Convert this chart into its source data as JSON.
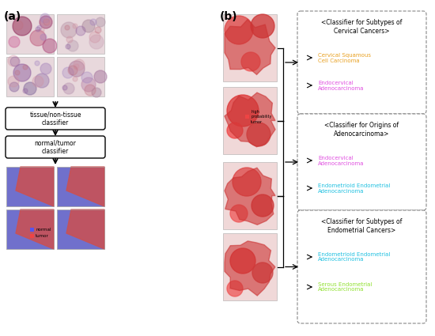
{
  "fig_width": 5.5,
  "fig_height": 4.25,
  "dpi": 100,
  "bg_color": "#ffffff",
  "panel_a_label": "(a)",
  "panel_b_label": "(b)",
  "classifier_box1_title": "<Classifier for Subtypes of\nCervical Cancers>",
  "classifier_box2_title": "<Classifier for Origins of\nAdenocarcinoma>",
  "classifier_box3_title": "<Classifier for Subtypes of\nEndometrial Cancers>",
  "box1_label1": "Cervical Squamous\nCell Carcinoma",
  "box1_label1_color": "#e8a020",
  "box1_label2": "Endocervical\nAdenocarcinoma",
  "box1_label2_color": "#e050e0",
  "box2_label1": "Endocervical\nAdenocarcinoma",
  "box2_label1_color": "#e050e0",
  "box2_label2": "Endometrioid Endometrial\nAdenocarcinoma",
  "box2_label2_color": "#20c0e0",
  "box3_label1": "Endometrioid Endometrial\nAdenocarcinoma",
  "box3_label1_color": "#20c0e0",
  "box3_label2": "Serous Endometrial\nAdenocarcinoma",
  "box3_label2_color": "#90e030",
  "tissue_classifier_label": "tissue/non-tissue\nclassifier",
  "tumor_classifier_label": "normal/tumor\nclassifier",
  "legend_normal_color": "#5555ee",
  "legend_tumor_color": "#ee4444",
  "legend_normal_label": "normal",
  "legend_tumor_label": "tumor",
  "high_prob_label": "high\nprobability\ntumor",
  "high_prob_color": "#ee4444"
}
